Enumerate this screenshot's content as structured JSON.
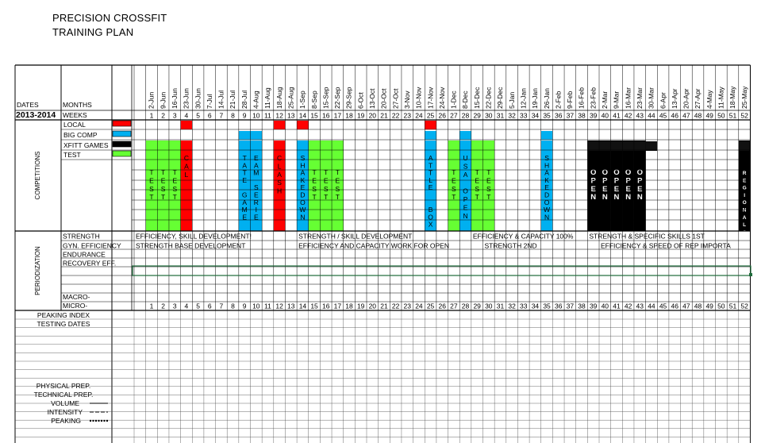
{
  "header": {
    "title_line1": "PRECISION CROSSFIT",
    "title_line2": "TRAINING PLAN"
  },
  "labels": {
    "dates": "DATES",
    "months": "MONTHS",
    "season": "2013-2014",
    "weeks": "WEEKS",
    "competitions": "COMPETITIONS",
    "periodization": "PERIODIZATION",
    "macro": "MACRO-",
    "micro": "MICRO-",
    "peaking_index": "PEAKING INDEX",
    "testing_dates": "TESTING DATES",
    "physical_prep": "PHYSICAL PREP.",
    "technical_prep": "TECHNICAL PREP.",
    "volume": "VOLUME",
    "intensity": "INTENSITY",
    "peaking": "PEAKING"
  },
  "legend": [
    {
      "label": "LOCAL",
      "color": "#ff0000"
    },
    {
      "label": "BIG COMP",
      "color": "#00b0f0"
    },
    {
      "label": "XFITT GAMES",
      "color": "#000000"
    },
    {
      "label": "TEST",
      "color": "#66ff33"
    }
  ],
  "dates": [
    "2-Jun",
    "9-Jun",
    "16-Jun",
    "23-Jun",
    "30-Jun",
    "7-Jul",
    "14-Jul",
    "21-Jul",
    "28-Jul",
    "4-Aug",
    "11-Aug",
    "18-Aug",
    "25-Aug",
    "1-Sep",
    "8-Sep",
    "15-Sep",
    "22-Sep",
    "29-Sep",
    "6-Oct",
    "13-Oct",
    "20-Oct",
    "27-Oct",
    "3-Nov",
    "10-Nov",
    "17-Nov",
    "24-Nov",
    "1-Dec",
    "8-Dec",
    "15-Dec",
    "22-Dec",
    "29-Dec",
    "5-Jan",
    "12-Jan",
    "19-Jan",
    "26-Jan",
    "2-Feb",
    "9-Feb",
    "16-Feb",
    "23-Feb",
    "2-Mar",
    "9-Mar",
    "16-Mar",
    "23-Mar",
    "30-Mar",
    "6-Apr",
    "13-Apr",
    "20-Apr",
    "27-Apr",
    "4-May",
    "11-May",
    "18-May",
    "25-May"
  ],
  "weeks": [
    "1",
    "2",
    "3",
    "4",
    "5",
    "6",
    "7",
    "8",
    "9",
    "10",
    "11",
    "12",
    "13",
    "14",
    "15",
    "16",
    "17",
    "18",
    "19",
    "20",
    "21",
    "22",
    "23",
    "24",
    "25",
    "26",
    "27",
    "28",
    "29",
    "30",
    "31",
    "32",
    "33",
    "34",
    "35",
    "36",
    "37",
    "38",
    "39",
    "40",
    "41",
    "42",
    "43",
    "44",
    "45",
    "46",
    "47",
    "48",
    "49",
    "50",
    "51",
    "52"
  ],
  "events": [
    {
      "week": 2,
      "type": "test",
      "text": "TEST"
    },
    {
      "week": 3,
      "type": "test",
      "text": "TEST"
    },
    {
      "week": 4,
      "type": "test",
      "text": "TEST"
    },
    {
      "week": 5,
      "type": "local",
      "text": "CAL"
    },
    {
      "week": 10,
      "type": "big",
      "text": "TATE GAME"
    },
    {
      "week": 11,
      "type": "big",
      "text": "EAM SERIE"
    },
    {
      "week": 13,
      "type": "local",
      "text": "CLASH"
    },
    {
      "week": 15,
      "type": "big",
      "text": "SHAKEDOWN"
    },
    {
      "week": 16,
      "type": "test",
      "text": "TEST"
    },
    {
      "week": 17,
      "type": "test",
      "text": "TEST"
    },
    {
      "week": 18,
      "type": "test",
      "text": "TEST"
    },
    {
      "week": 26,
      "type": "big",
      "text": "ATTLE  BOX"
    },
    {
      "week": 28,
      "type": "test",
      "text": "TEST"
    },
    {
      "week": 29,
      "type": "big",
      "text": "USA OPEN"
    },
    {
      "week": 30,
      "type": "test",
      "text": "TEST"
    },
    {
      "week": 31,
      "type": "test",
      "text": "TEST"
    },
    {
      "week": 36,
      "type": "big",
      "text": "SHAKEDOWN"
    },
    {
      "week": 40,
      "type": "games",
      "text": "OPEN"
    },
    {
      "week": 41,
      "type": "games",
      "text": "OPEN"
    },
    {
      "week": 42,
      "type": "games",
      "text": "OPEN"
    },
    {
      "week": 43,
      "type": "games",
      "text": "OPEN"
    },
    {
      "week": 44,
      "type": "games",
      "text": "OPEN"
    },
    {
      "week": 53,
      "type": "games",
      "text": "REGIONALS"
    }
  ],
  "legend_marks": [
    {
      "week": 5,
      "row": "local"
    },
    {
      "week": 13,
      "row": "local"
    },
    {
      "week": 15,
      "row": "local"
    },
    {
      "week": 26,
      "row": "local"
    },
    {
      "week": 10,
      "row": "big"
    },
    {
      "week": 11,
      "row": "big"
    },
    {
      "week": 26,
      "row": "big"
    },
    {
      "week": 29,
      "row": "big"
    },
    {
      "week": 36,
      "row": "big"
    }
  ],
  "periodization": [
    {
      "label": "STRENGTH",
      "notes": [
        {
          "week": 1,
          "text": "EFFICIENCY, SKILL DEVELOPMENT!"
        },
        {
          "week": 15,
          "text": "STRENGTH / SKILL DEVELOPMENT"
        },
        {
          "week": 30,
          "text": "EFFICIENCY & CAPACITY 100%"
        },
        {
          "week": 40,
          "text": "STRENGTH & SPECIFIC SKILLS 1ST"
        }
      ]
    },
    {
      "label": "GYN. EFFICIENCY",
      "notes": [
        {
          "week": 1,
          "text": "STRENGTH BASE DEVELOPMENT"
        },
        {
          "week": 15,
          "text": "EFFICIENCY AND CAPACITY WORK FOR OPEN"
        },
        {
          "week": 31,
          "text": "STRENGTH 2ND"
        },
        {
          "week": 41,
          "text": "EFFICIENCY & SPEED OF REP IMPORTA"
        }
      ]
    },
    {
      "label": "ENDURANCE",
      "notes": []
    },
    {
      "label": "RECOVERY EFF.",
      "notes": []
    }
  ]
}
